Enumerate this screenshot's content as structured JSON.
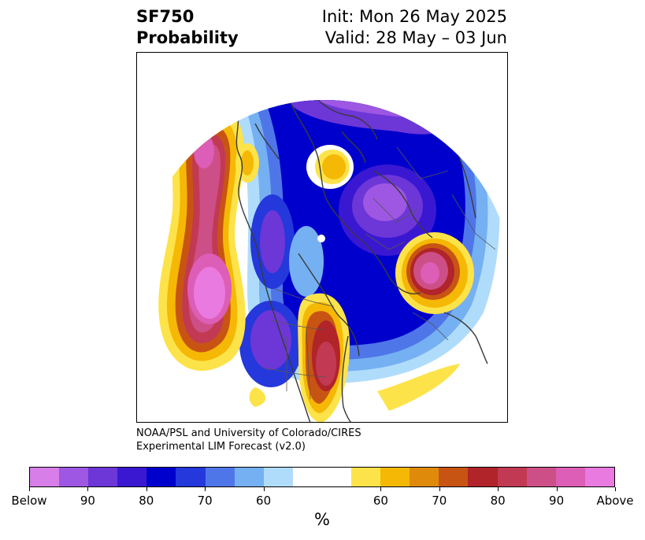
{
  "header": {
    "title_line1": "SF750",
    "title_line2": "Probability",
    "init_text": "Init: Mon 26 May 2025",
    "valid_text": "Valid: 28 May – 03 Jun"
  },
  "credit": {
    "line1": "NOAA/PSL and University of Colorado/CIRES",
    "line2": "Experimental LIM Forecast (v2.0)"
  },
  "colorbar": {
    "unit": "%",
    "colors": [
      "#d77ee9",
      "#9d57e2",
      "#6d36d7",
      "#3a18d2",
      "#0000cc",
      "#2438db",
      "#4f76e8",
      "#75b0f2",
      "#b0dcfb",
      "#ffffff",
      "#ffffff",
      "#fde34a",
      "#f5b805",
      "#e08a0b",
      "#c85414",
      "#b0242a",
      "#c23953",
      "#cd4f87",
      "#dc5eb6",
      "#e97ae0"
    ],
    "labels": [
      "Below",
      "90",
      "80",
      "70",
      "60",
      "60",
      "70",
      "80",
      "90",
      "Above"
    ]
  },
  "map": {
    "projection": "north polar stereographic",
    "colors": {
      "below_strong": "#9d57e2",
      "below": "#0000cc",
      "above": "#b0242a",
      "above_strong": "#e97ae0",
      "coast": "#3a3a3a"
    }
  }
}
